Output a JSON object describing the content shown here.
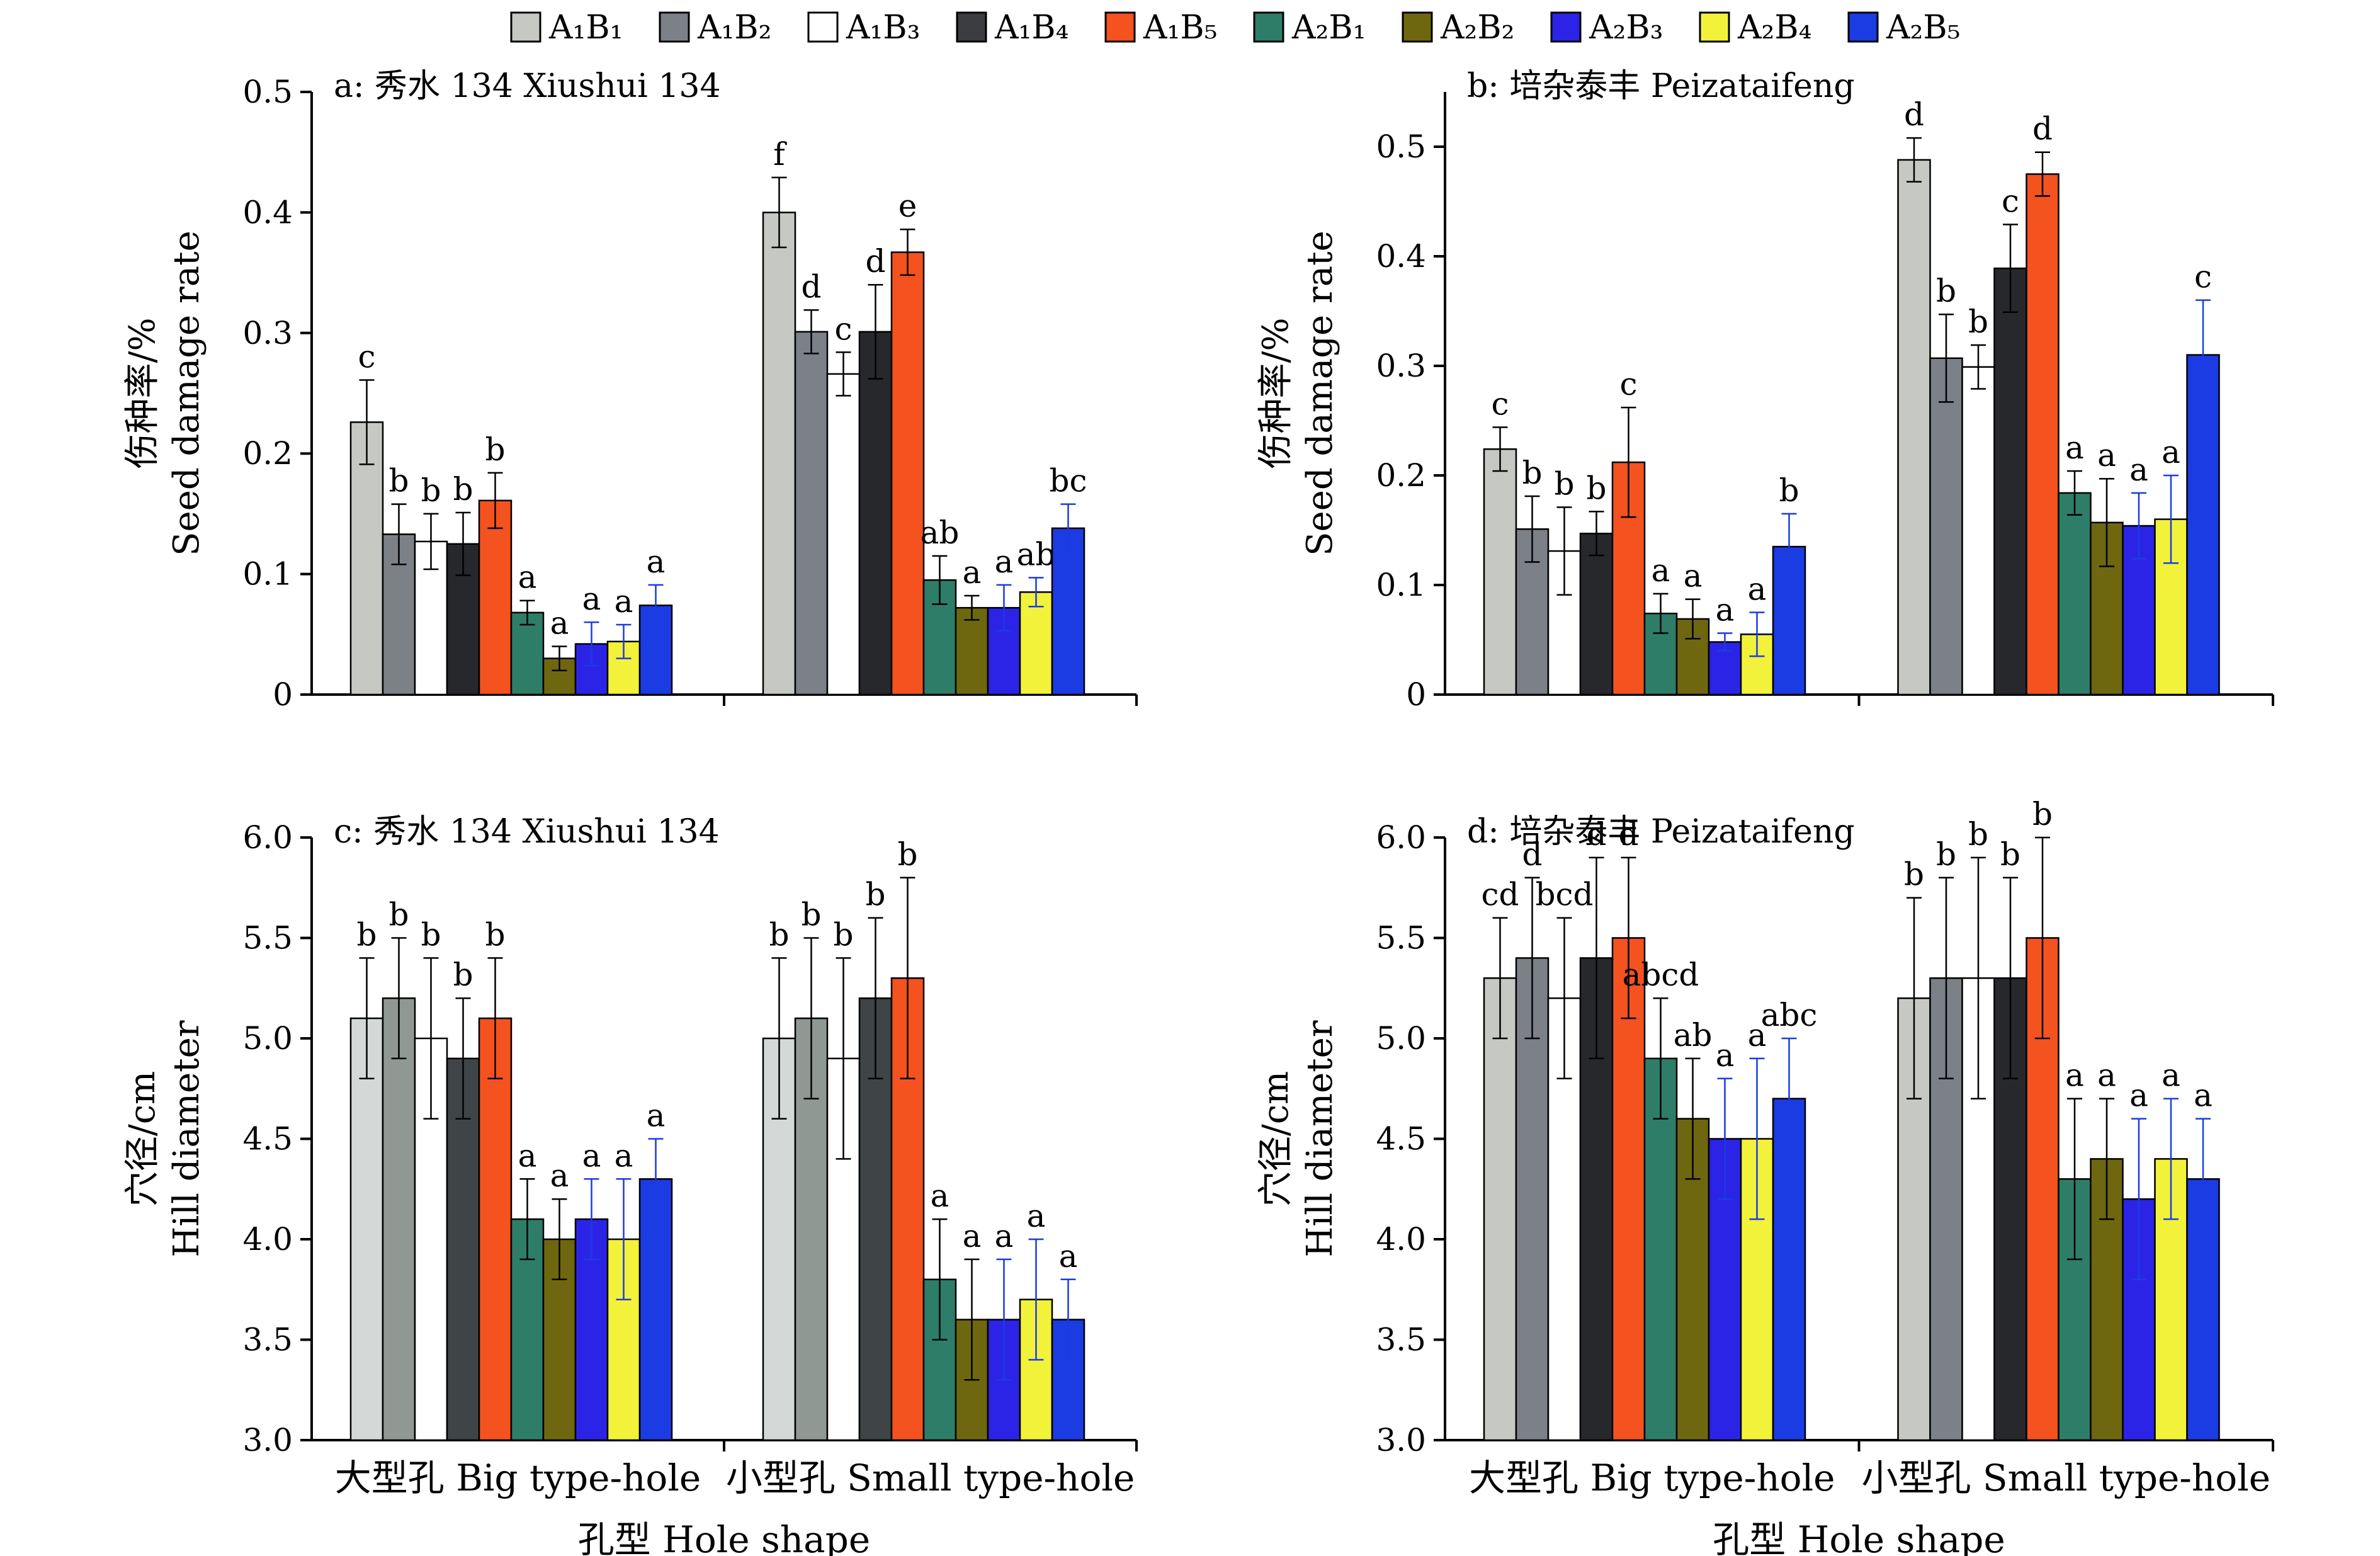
{
  "legend": [
    {
      "text": "A₁B₁",
      "color": "#c6c8c4"
    },
    {
      "text": "A₁B₂",
      "color": "#7c8087"
    },
    {
      "text": "A₁B₃",
      "color": "#ffffff"
    },
    {
      "text": "A₁B₄",
      "color": "#3a3c40"
    },
    {
      "text": "A₁B₅",
      "color": "#f4521f"
    },
    {
      "text": "A₂B₁",
      "color": "#2e7d69"
    },
    {
      "text": "A₂B₂",
      "color": "#6f6710"
    },
    {
      "text": "A₂B₃",
      "color": "#2b24e6"
    },
    {
      "text": "A₂B₄",
      "color": "#f2f23a"
    },
    {
      "text": "A₂B₅",
      "color": "#1b3be3"
    }
  ],
  "chart_data": [
    {
      "type": "bar",
      "title": "a: 秀水 134 Xiushui 134",
      "ylabel_cn": "伤种率/%",
      "ylabel_en": "Seed damage rate",
      "ylim": [
        0,
        0.5
      ],
      "yticks": [
        "0",
        "0.1",
        "0.2",
        "0.3",
        "0.4",
        "0.5"
      ],
      "categories": [
        "大型孔 Big type-hole",
        "小型孔 Small type-hole"
      ],
      "show_xlabels": false,
      "xlabel": "",
      "colors": [
        "#c6c8c4",
        "#7c8087",
        "#ffffff",
        "#27282c",
        "#f4521f",
        "#2e7d69",
        "#6f6710",
        "#2b24e6",
        "#f2f23a",
        "#1b3be3"
      ],
      "values": [
        [
          0.226,
          0.133,
          0.127,
          0.125,
          0.161,
          0.068,
          0.03,
          0.042,
          0.044,
          0.074
        ],
        [
          0.4,
          0.301,
          0.266,
          0.301,
          0.367,
          0.095,
          0.072,
          0.072,
          0.085,
          0.138
        ]
      ],
      "errors": [
        [
          0.035,
          0.025,
          0.023,
          0.026,
          0.023,
          0.01,
          0.01,
          0.018,
          0.014,
          0.017
        ],
        [
          0.029,
          0.018,
          0.018,
          0.039,
          0.019,
          0.02,
          0.01,
          0.019,
          0.012,
          0.02
        ]
      ],
      "letters": [
        [
          "c",
          "b",
          "b",
          "b",
          "b",
          "a",
          "a",
          "a",
          "a",
          "a"
        ],
        [
          "f",
          "d",
          "c",
          "d",
          "e",
          "ab",
          "a",
          "a",
          "ab",
          "bc"
        ]
      ]
    },
    {
      "type": "bar",
      "title": "b: 培杂泰丰 Peizataifeng",
      "ylabel_cn": "伤种率/%",
      "ylabel_en": "Seed damage rate",
      "ylim": [
        0,
        0.55
      ],
      "yticks": [
        "0",
        "0.1",
        "0.2",
        "0.3",
        "0.4",
        "0.5"
      ],
      "categories": [
        "大型孔 Big type-hole",
        "小型孔 Small type-hole"
      ],
      "show_xlabels": false,
      "xlabel": "",
      "colors": [
        "#c6c8c4",
        "#7c8087",
        "#ffffff",
        "#27282c",
        "#f4521f",
        "#2e7d69",
        "#6f6710",
        "#2b24e6",
        "#f2f23a",
        "#1b3be3"
      ],
      "values": [
        [
          0.224,
          0.151,
          0.131,
          0.147,
          0.212,
          0.074,
          0.069,
          0.048,
          0.055,
          0.135
        ],
        [
          0.488,
          0.307,
          0.299,
          0.389,
          0.475,
          0.184,
          0.157,
          0.154,
          0.16,
          0.31
        ]
      ],
      "errors": [
        [
          0.02,
          0.03,
          0.04,
          0.02,
          0.05,
          0.018,
          0.018,
          0.008,
          0.02,
          0.03
        ],
        [
          0.02,
          0.04,
          0.02,
          0.04,
          0.02,
          0.02,
          0.04,
          0.03,
          0.04,
          0.05
        ]
      ],
      "letters": [
        [
          "c",
          "b",
          "b",
          "b",
          "c",
          "a",
          "a",
          "a",
          "a",
          "b"
        ],
        [
          "d",
          "b",
          "b",
          "c",
          "d",
          "a",
          "a",
          "a",
          "a",
          "c"
        ]
      ]
    },
    {
      "type": "bar",
      "title": "c: 秀水 134 Xiushui 134",
      "ylabel_cn": "穴径/cm",
      "ylabel_en": "Hill diameter",
      "ylim": [
        3.0,
        6.0
      ],
      "yticks": [
        "3.0",
        "3.5",
        "4.0",
        "4.5",
        "5.0",
        "5.5",
        "6.0"
      ],
      "categories": [
        "大型孔 Big type-hole",
        "小型孔 Small type-hole"
      ],
      "show_xlabels": true,
      "xlabel": "孔型 Hole shape",
      "colors": [
        "#d4d8d6",
        "#8f9893",
        "#ffffff",
        "#3f4446",
        "#f4521f",
        "#2e7d69",
        "#6f6710",
        "#2b24e6",
        "#f2f23a",
        "#1b3be3"
      ],
      "values": [
        [
          5.1,
          5.2,
          5.0,
          4.9,
          5.1,
          4.1,
          4.0,
          4.1,
          4.0,
          4.3
        ],
        [
          5.0,
          5.1,
          4.9,
          5.2,
          5.3,
          3.8,
          3.6,
          3.6,
          3.7,
          3.6
        ]
      ],
      "errors": [
        [
          0.3,
          0.3,
          0.4,
          0.3,
          0.3,
          0.2,
          0.2,
          0.2,
          0.3,
          0.2
        ],
        [
          0.4,
          0.4,
          0.5,
          0.4,
          0.5,
          0.3,
          0.3,
          0.3,
          0.3,
          0.2
        ]
      ],
      "letters": [
        [
          "b",
          "b",
          "b",
          "b",
          "b",
          "a",
          "a",
          "a",
          "a",
          "a"
        ],
        [
          "b",
          "b",
          "b",
          "b",
          "b",
          "a",
          "a",
          "a",
          "a",
          "a"
        ]
      ]
    },
    {
      "type": "bar",
      "title": "d: 培杂泰丰 Peizataifeng",
      "ylabel_cn": "穴径/cm",
      "ylabel_en": "Hill diameter",
      "ylim": [
        3.0,
        6.0
      ],
      "yticks": [
        "3.0",
        "3.5",
        "4.0",
        "4.5",
        "5.0",
        "5.5",
        "6.0"
      ],
      "categories": [
        "大型孔 Big type-hole",
        "小型孔 Small type-hole"
      ],
      "show_xlabels": true,
      "xlabel": "孔型 Hole shape",
      "colors": [
        "#c6c8c4",
        "#7c8087",
        "#ffffff",
        "#27282c",
        "#f4521f",
        "#2e7d69",
        "#6f6710",
        "#2b24e6",
        "#f2f23a",
        "#1b3be3"
      ],
      "values": [
        [
          5.3,
          5.4,
          5.2,
          5.4,
          5.5,
          4.9,
          4.6,
          4.5,
          4.5,
          4.7
        ],
        [
          5.2,
          5.3,
          5.3,
          5.3,
          5.5,
          4.3,
          4.4,
          4.2,
          4.4,
          4.3
        ]
      ],
      "errors": [
        [
          0.3,
          0.4,
          0.4,
          0.5,
          0.4,
          0.3,
          0.3,
          0.3,
          0.4,
          0.3
        ],
        [
          0.5,
          0.5,
          0.6,
          0.5,
          0.5,
          0.4,
          0.3,
          0.4,
          0.3,
          0.3
        ]
      ],
      "letters": [
        [
          "cd",
          "d",
          "bcd",
          "d",
          "d",
          "abcd",
          "ab",
          "a",
          "a",
          "abc"
        ],
        [
          "b",
          "b",
          "b",
          "b",
          "b",
          "a",
          "a",
          "a",
          "a",
          "a"
        ]
      ]
    }
  ]
}
